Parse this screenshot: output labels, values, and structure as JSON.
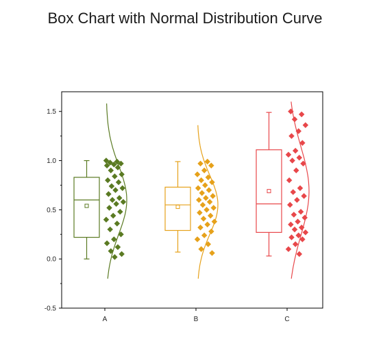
{
  "page": {
    "title": "Box Chart with Normal Distribution Curve"
  },
  "chart_data": {
    "type": "box",
    "title": "Box Chart with Normal Distribution Curve",
    "xlabel": "",
    "ylabel": "",
    "ylim": [
      -0.5,
      1.7
    ],
    "yticks": [
      "-0.5",
      "0.0",
      "0.5",
      "1.0",
      "1.5"
    ],
    "ytick_values": [
      -0.5,
      0.0,
      0.5,
      1.0,
      1.5
    ],
    "categories": [
      "A",
      "B",
      "C"
    ],
    "grid": false,
    "series": [
      {
        "category": "A",
        "color": "#5a7a22",
        "whisker_low": 0.0,
        "q1": 0.22,
        "median": 0.6,
        "q3": 0.83,
        "whisker_high": 1.0,
        "mean": 0.54,
        "curve_mean": 0.6,
        "curve_sd": 0.35,
        "curve_range": [
          -0.2,
          1.58
        ],
        "points": [
          1.0,
          0.99,
          0.98,
          0.97,
          0.96,
          0.95,
          0.93,
          0.9,
          0.86,
          0.84,
          0.8,
          0.78,
          0.74,
          0.72,
          0.7,
          0.66,
          0.62,
          0.6,
          0.58,
          0.56,
          0.52,
          0.48,
          0.44,
          0.4,
          0.36,
          0.3,
          0.25,
          0.2,
          0.16,
          0.12,
          0.08,
          0.05,
          0.02
        ]
      },
      {
        "category": "B",
        "color": "#e6a11a",
        "whisker_low": 0.07,
        "q1": 0.29,
        "median": 0.55,
        "q3": 0.73,
        "whisker_high": 0.99,
        "mean": 0.53,
        "curve_mean": 0.55,
        "curve_sd": 0.3,
        "curve_range": [
          -0.2,
          1.36
        ],
        "points": [
          0.99,
          0.97,
          0.95,
          0.9,
          0.86,
          0.83,
          0.8,
          0.78,
          0.75,
          0.72,
          0.7,
          0.67,
          0.64,
          0.62,
          0.6,
          0.58,
          0.55,
          0.52,
          0.5,
          0.47,
          0.44,
          0.41,
          0.38,
          0.35,
          0.32,
          0.28,
          0.24,
          0.2,
          0.15,
          0.1,
          0.06
        ]
      },
      {
        "category": "C",
        "color": "#e8474a",
        "whisker_low": 0.03,
        "q1": 0.27,
        "median": 0.56,
        "q3": 1.11,
        "whisker_high": 1.49,
        "mean": 0.69,
        "curve_mean": 0.69,
        "curve_sd": 0.45,
        "curve_range": [
          -0.2,
          1.6
        ],
        "points": [
          1.5,
          1.47,
          1.42,
          1.36,
          1.3,
          1.25,
          1.18,
          1.1,
          1.06,
          1.03,
          1.0,
          0.97,
          0.9,
          0.8,
          0.72,
          0.68,
          0.64,
          0.6,
          0.55,
          0.48,
          0.45,
          0.42,
          0.38,
          0.35,
          0.32,
          0.3,
          0.27,
          0.24,
          0.22,
          0.2,
          0.15,
          0.1,
          0.05
        ]
      }
    ]
  }
}
